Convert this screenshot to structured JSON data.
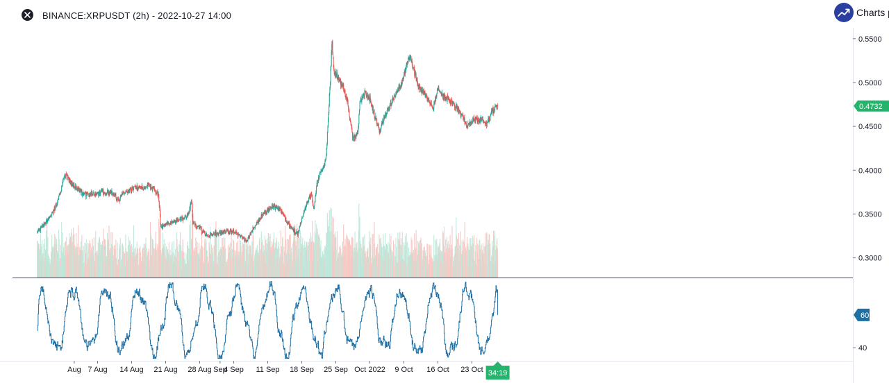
{
  "header": {
    "title": "BINANCE:XRPUSDT (2h) - 2022-10-27 14:00",
    "brand": "Charts p",
    "close_icon": "close-icon",
    "brand_icon": "trending-up-icon",
    "brand_color": "#2a3fa0"
  },
  "colors": {
    "up": "#26a69a",
    "down": "#ef5350",
    "volume_up": "#bfe8da",
    "volume_down": "#f8c8c4",
    "indicator": "#1f6fa3",
    "price_tag": "#26b36b",
    "time_tag": "#26b36b"
  },
  "chart_data": {
    "type": "candlestick",
    "symbol": "BINANCE:XRPUSDT",
    "interval": "2h",
    "timestamp": "2022-10-27 14:00",
    "ylim": [
      0.2775,
      0.5625
    ],
    "price_ticks": [
      "0.5500",
      "0.5000",
      "0.4500",
      "0.4000",
      "0.3500",
      "0.3000"
    ],
    "price_tick_values": [
      0.55,
      0.5,
      0.45,
      0.4,
      0.35,
      0.3
    ],
    "last_price": "0.4732",
    "last_price_value": 0.4732,
    "countdown": "34:19",
    "x_labels": [
      "Aug",
      "7 Aug",
      "14 Aug",
      "21 Aug",
      "28 Aug",
      "Sep",
      "4 Sep",
      "11 Sep",
      "18 Sep",
      "25 Sep",
      "Oct 2022",
      "9 Oct",
      "16 Oct",
      "23 Oct"
    ],
    "x_label_days": [
      2.2,
      7,
      14,
      21,
      28,
      32.2,
      35,
      42,
      49,
      56,
      63,
      70,
      77,
      84
    ],
    "start_day": -5.4,
    "bars_per_day": 12,
    "price_anchors": [
      [
        -5.4,
        0.33
      ],
      [
        -4.5,
        0.335
      ],
      [
        -3.0,
        0.345
      ],
      [
        -1.5,
        0.36
      ],
      [
        -0.6,
        0.375
      ],
      [
        0.0,
        0.39
      ],
      [
        0.6,
        0.395
      ],
      [
        2.0,
        0.382
      ],
      [
        4.0,
        0.373
      ],
      [
        6.0,
        0.372
      ],
      [
        8.0,
        0.375
      ],
      [
        10.0,
        0.374
      ],
      [
        11.4,
        0.366
      ],
      [
        12.0,
        0.374
      ],
      [
        13.5,
        0.377
      ],
      [
        15.0,
        0.381
      ],
      [
        16.5,
        0.379
      ],
      [
        17.5,
        0.383
      ],
      [
        18.5,
        0.379
      ],
      [
        19.5,
        0.372
      ],
      [
        20.0,
        0.336
      ],
      [
        21.5,
        0.339
      ],
      [
        23.0,
        0.342
      ],
      [
        24.5,
        0.345
      ],
      [
        25.5,
        0.348
      ],
      [
        26.3,
        0.363
      ],
      [
        26.6,
        0.34
      ],
      [
        28.0,
        0.334
      ],
      [
        29.5,
        0.325
      ],
      [
        31.0,
        0.327
      ],
      [
        33.0,
        0.33
      ],
      [
        35.0,
        0.33
      ],
      [
        36.5,
        0.325
      ],
      [
        37.5,
        0.319
      ],
      [
        38.5,
        0.328
      ],
      [
        39.5,
        0.338
      ],
      [
        41.0,
        0.35
      ],
      [
        43.0,
        0.359
      ],
      [
        44.5,
        0.356
      ],
      [
        45.3,
        0.349
      ],
      [
        46.5,
        0.336
      ],
      [
        47.5,
        0.33
      ],
      [
        48.2,
        0.327
      ],
      [
        49.0,
        0.345
      ],
      [
        50.0,
        0.363
      ],
      [
        51.0,
        0.373
      ],
      [
        51.5,
        0.354
      ],
      [
        52.0,
        0.381
      ],
      [
        52.8,
        0.398
      ],
      [
        53.5,
        0.402
      ],
      [
        54.0,
        0.415
      ],
      [
        54.5,
        0.465
      ],
      [
        54.9,
        0.507
      ],
      [
        55.2,
        0.547
      ],
      [
        55.6,
        0.513
      ],
      [
        56.5,
        0.505
      ],
      [
        57.5,
        0.495
      ],
      [
        58.5,
        0.475
      ],
      [
        59.5,
        0.435
      ],
      [
        60.5,
        0.443
      ],
      [
        61.0,
        0.478
      ],
      [
        62.0,
        0.488
      ],
      [
        63.0,
        0.48
      ],
      [
        64.0,
        0.462
      ],
      [
        65.0,
        0.445
      ],
      [
        66.5,
        0.468
      ],
      [
        68.0,
        0.482
      ],
      [
        69.5,
        0.498
      ],
      [
        70.5,
        0.517
      ],
      [
        71.2,
        0.53
      ],
      [
        72.0,
        0.515
      ],
      [
        73.0,
        0.496
      ],
      [
        74.5,
        0.486
      ],
      [
        76.0,
        0.47
      ],
      [
        77.0,
        0.493
      ],
      [
        78.0,
        0.485
      ],
      [
        80.0,
        0.477
      ],
      [
        82.0,
        0.462
      ],
      [
        83.0,
        0.451
      ],
      [
        84.5,
        0.458
      ],
      [
        86.0,
        0.458
      ],
      [
        87.0,
        0.452
      ],
      [
        88.0,
        0.465
      ],
      [
        89.0,
        0.472
      ],
      [
        89.3,
        0.4732
      ]
    ],
    "indicator": {
      "type": "line",
      "range": [
        32,
        82
      ],
      "ticks": [
        "40"
      ],
      "tick_values": [
        40
      ],
      "last_value": "60",
      "last_value_number": 60
    }
  }
}
